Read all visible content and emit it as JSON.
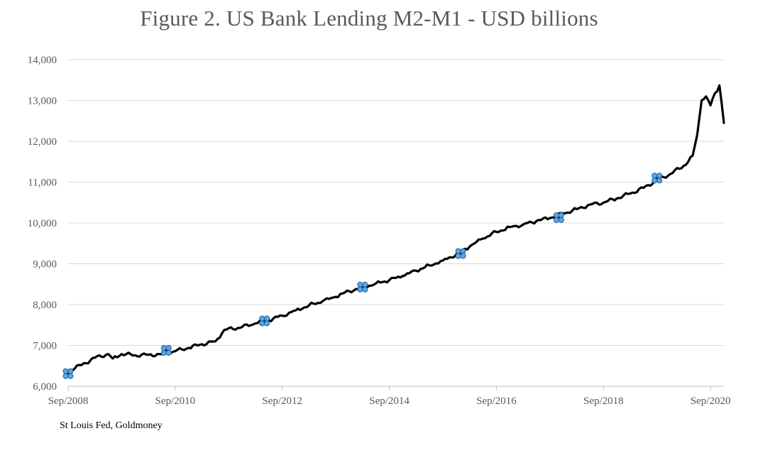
{
  "chart_data": {
    "type": "line",
    "title": "Figure 2. US Bank Lending M2-M1 - USD billions",
    "xlabel": "",
    "ylabel": "",
    "source": "St Louis Fed, Goldmoney",
    "ylim": [
      6000,
      14000
    ],
    "yticks": [
      6000,
      7000,
      8000,
      9000,
      10000,
      11000,
      12000,
      13000,
      14000
    ],
    "ytick_labels": [
      "6,000",
      "7,000",
      "8,000",
      "9,000",
      "10,000",
      "11,000",
      "12,000",
      "13,000",
      "14,000"
    ],
    "xlim": [
      "2008-09",
      "2020-12"
    ],
    "xticks": [
      "2008-09",
      "2010-09",
      "2012-09",
      "2014-09",
      "2016-09",
      "2018-09",
      "2020-09"
    ],
    "xtick_labels": [
      "Sep/2008",
      "Sep/2010",
      "Sep/2012",
      "Sep/2014",
      "Sep/2016",
      "Sep/2018",
      "Sep/2020"
    ],
    "grid": "horizontal",
    "legend": "none",
    "series": [
      {
        "color": "#000000",
        "points": [
          [
            "2008-09",
            6380
          ],
          [
            "2008-12",
            6520
          ],
          [
            "2009-03",
            6700
          ],
          [
            "2009-06",
            6790
          ],
          [
            "2009-07",
            6680
          ],
          [
            "2009-09",
            6790
          ],
          [
            "2009-12",
            6760
          ],
          [
            "2010-03",
            6770
          ],
          [
            "2010-06",
            6780
          ],
          [
            "2010-09",
            6860
          ],
          [
            "2010-12",
            6940
          ],
          [
            "2011-03",
            7030
          ],
          [
            "2011-06",
            7100
          ],
          [
            "2011-08",
            7380
          ],
          [
            "2011-12",
            7450
          ],
          [
            "2012-03",
            7540
          ],
          [
            "2012-06",
            7620
          ],
          [
            "2012-09",
            7730
          ],
          [
            "2012-12",
            7860
          ],
          [
            "2013-03",
            7980
          ],
          [
            "2013-06",
            8080
          ],
          [
            "2013-09",
            8190
          ],
          [
            "2013-12",
            8330
          ],
          [
            "2014-03",
            8420
          ],
          [
            "2014-06",
            8520
          ],
          [
            "2014-09",
            8600
          ],
          [
            "2014-12",
            8700
          ],
          [
            "2015-03",
            8830
          ],
          [
            "2015-06",
            8960
          ],
          [
            "2015-09",
            9080
          ],
          [
            "2015-12",
            9230
          ],
          [
            "2016-03",
            9420
          ],
          [
            "2016-06",
            9620
          ],
          [
            "2016-09",
            9780
          ],
          [
            "2016-12",
            9900
          ],
          [
            "2017-03",
            9960
          ],
          [
            "2017-06",
            10050
          ],
          [
            "2017-09",
            10120
          ],
          [
            "2017-12",
            10230
          ],
          [
            "2018-03",
            10340
          ],
          [
            "2018-06",
            10450
          ],
          [
            "2018-09",
            10500
          ],
          [
            "2018-12",
            10600
          ],
          [
            "2019-03",
            10720
          ],
          [
            "2019-06",
            10860
          ],
          [
            "2019-09",
            11050
          ],
          [
            "2019-12",
            11200
          ],
          [
            "2020-03",
            11400
          ],
          [
            "2020-04",
            11500
          ],
          [
            "2020-05",
            11650
          ],
          [
            "2020-06",
            12150
          ],
          [
            "2020-07",
            13000
          ],
          [
            "2020-08",
            13100
          ],
          [
            "2020-09",
            12880
          ],
          [
            "2020-10",
            13180
          ],
          [
            "2020-11",
            13370
          ],
          [
            "2020-12",
            12450
          ]
        ]
      }
    ],
    "markers": [
      {
        "icon": "clover-marker-icon",
        "x": "2008-09",
        "y": 6310,
        "color": "#5aa6e0"
      },
      {
        "icon": "clover-marker-icon",
        "x": "2010-07",
        "y": 6880,
        "color": "#5aa6e0"
      },
      {
        "icon": "clover-marker-icon",
        "x": "2012-05",
        "y": 7600,
        "color": "#5aa6e0"
      },
      {
        "icon": "clover-marker-icon",
        "x": "2014-03",
        "y": 8430,
        "color": "#5aa6e0"
      },
      {
        "icon": "clover-marker-icon",
        "x": "2016-01",
        "y": 9250,
        "color": "#5aa6e0"
      },
      {
        "icon": "clover-marker-icon",
        "x": "2017-11",
        "y": 10130,
        "color": "#5aa6e0"
      },
      {
        "icon": "clover-marker-icon",
        "x": "2019-09",
        "y": 11100,
        "color": "#5aa6e0"
      }
    ],
    "colors": {
      "line": "#000000",
      "grid": "#d9d9d9",
      "axis": "#bfbfbf",
      "text": "#595959"
    }
  }
}
